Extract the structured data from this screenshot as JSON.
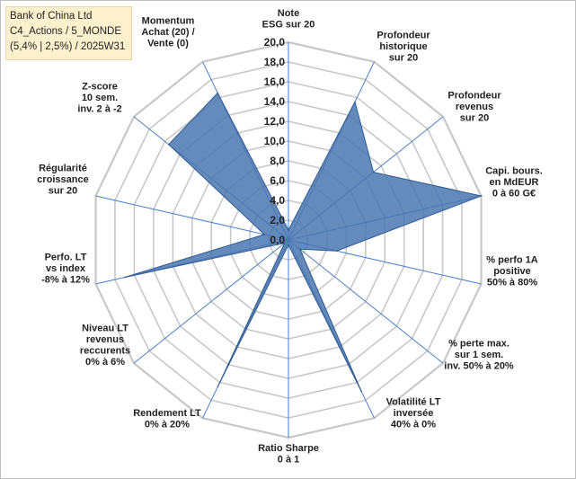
{
  "title_box": {
    "line1": "Bank of China Ltd",
    "line2": "C4_Actions / 5_MONDE",
    "line3": "(5,4% | 2,5%) / 2025W31"
  },
  "colors": {
    "fill": "#4a76b0",
    "stroke": "#2f5a94",
    "grid": "#c8c8c8",
    "spoke": "#4a7fc8"
  },
  "chart_data": {
    "type": "radar",
    "rmin": 0,
    "rmax": 20,
    "ticks": [
      "0,0",
      "2,0",
      "4,0",
      "6,0",
      "8,0",
      "10,0",
      "12,0",
      "14,0",
      "16,0",
      "18,0",
      "20,0"
    ],
    "axes": [
      {
        "label": [
          "Note",
          "ESG sur 20"
        ],
        "value": 1
      },
      {
        "label": [
          "Profondeur",
          "historique",
          "sur 20"
        ],
        "value": 15.5
      },
      {
        "label": [
          "Profondeur",
          "revenus",
          "sur 20"
        ],
        "value": 11
      },
      {
        "label": [
          "Capi. bours.",
          "en MdEUR",
          "0 à 60 G€"
        ],
        "value": 20
      },
      {
        "label": [
          "% perfo 1A",
          "positive",
          "50% à 80%"
        ],
        "value": 5
      },
      {
        "label": [
          "% perte max.",
          "sur 1 sem.",
          "inv. 50% à 20%"
        ],
        "value": 1.5
      },
      {
        "label": [
          "Volatilité LT",
          "inversée",
          "40% à 0%"
        ],
        "value": 17
      },
      {
        "label": [
          "Ratio Sharpe",
          "0 à 1"
        ],
        "value": 0.5
      },
      {
        "label": [
          "Rendement LT",
          "0% à 20%"
        ],
        "value": 16.5
      },
      {
        "label": [
          "Niveau LT",
          "revenus",
          "reccurents",
          "0% à 6%"
        ],
        "value": 0.5
      },
      {
        "label": [
          "Perfo. LT",
          "vs index",
          "-8% à 12%"
        ],
        "value": 17
      },
      {
        "label": [
          "Régularité",
          "croissance",
          "sur 20"
        ],
        "value": 2.5
      },
      {
        "label": [
          "Z-score",
          "10 sem.",
          "inv. 2 à -2"
        ],
        "value": 15.5
      },
      {
        "label": [
          "Momentum",
          "Achat (20) /",
          "Vente (0)"
        ],
        "value": 16.5
      }
    ]
  }
}
